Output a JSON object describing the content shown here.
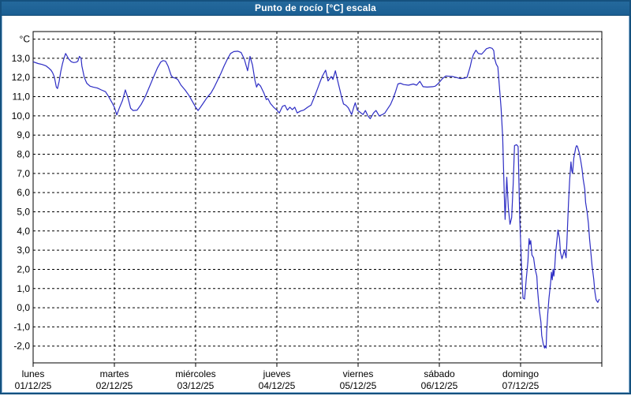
{
  "window": {
    "title": "Punto de rocío [°C] escala",
    "titlebar_color": "#1e6396",
    "frame_color": "#15517f",
    "frame_inner_color": "#8fb6d6"
  },
  "chart_data": {
    "type": "line",
    "title": "Punto de rocío [°C] escala",
    "ylabel": "°C",
    "unit_label": "°C",
    "ylim": [
      -2,
      14
    ],
    "grid": "dashed-black-both-axes",
    "legend": "none",
    "background": "#ffffff",
    "line_color": "#2d2dc4",
    "y_ticks": [
      {
        "value": 13,
        "label": "13,0"
      },
      {
        "value": 12,
        "label": "12,0"
      },
      {
        "value": 11,
        "label": "11,0"
      },
      {
        "value": 10,
        "label": "10,0"
      },
      {
        "value": 9,
        "label": "9,0"
      },
      {
        "value": 8,
        "label": "8,0"
      },
      {
        "value": 7,
        "label": "7,0"
      },
      {
        "value": 6,
        "label": "6,0"
      },
      {
        "value": 5,
        "label": "5,0"
      },
      {
        "value": 4,
        "label": "4,0"
      },
      {
        "value": 3,
        "label": "3,0"
      },
      {
        "value": 2,
        "label": "2,0"
      },
      {
        "value": 1,
        "label": "1,0"
      },
      {
        "value": 0,
        "label": "0,0"
      },
      {
        "value": -1,
        "label": "-1,0"
      },
      {
        "value": -2,
        "label": "-2,0"
      }
    ],
    "x_categories": [
      {
        "name": "lunes",
        "date": "01/12/25"
      },
      {
        "name": "martes",
        "date": "02/12/25"
      },
      {
        "name": "miércoles",
        "date": "03/12/25"
      },
      {
        "name": "jueves",
        "date": "04/12/25"
      },
      {
        "name": "viernes",
        "date": "05/12/25"
      },
      {
        "name": "sábado",
        "date": "06/12/25"
      },
      {
        "name": "domingo",
        "date": "07/12/25"
      }
    ],
    "x_range_days": [
      0,
      7
    ],
    "series": [
      {
        "name": "Punto de rocío",
        "color": "#2d2dc4",
        "points": [
          [
            0,
            12.82
          ],
          [
            0.06,
            12.73
          ],
          [
            0.11,
            12.68
          ],
          [
            0.16,
            12.6
          ],
          [
            0.19,
            12.5
          ],
          [
            0.22,
            12.38
          ],
          [
            0.24,
            12.25
          ],
          [
            0.26,
            12.04
          ],
          [
            0.27,
            11.84
          ],
          [
            0.285,
            11.5
          ],
          [
            0.3,
            11.42
          ],
          [
            0.32,
            11.8
          ],
          [
            0.34,
            12.3
          ],
          [
            0.36,
            12.7
          ],
          [
            0.38,
            13.0
          ],
          [
            0.4,
            13.25
          ],
          [
            0.42,
            13.1
          ],
          [
            0.44,
            12.95
          ],
          [
            0.47,
            12.82
          ],
          [
            0.5,
            12.78
          ],
          [
            0.53,
            12.8
          ],
          [
            0.55,
            12.85
          ],
          [
            0.57,
            13.1
          ],
          [
            0.59,
            13.0
          ],
          [
            0.6,
            12.6
          ],
          [
            0.63,
            12.0
          ],
          [
            0.66,
            11.7
          ],
          [
            0.7,
            11.55
          ],
          [
            0.74,
            11.5
          ],
          [
            0.79,
            11.45
          ],
          [
            0.84,
            11.35
          ],
          [
            0.89,
            11.26
          ],
          [
            0.93,
            11.0
          ],
          [
            0.97,
            10.7
          ],
          [
            1.0,
            10.45
          ],
          [
            1.03,
            10.05
          ],
          [
            1.06,
            10.4
          ],
          [
            1.1,
            10.8
          ],
          [
            1.135,
            11.35
          ],
          [
            1.17,
            10.9
          ],
          [
            1.2,
            10.4
          ],
          [
            1.23,
            10.28
          ],
          [
            1.28,
            10.3
          ],
          [
            1.33,
            10.6
          ],
          [
            1.38,
            11.0
          ],
          [
            1.43,
            11.5
          ],
          [
            1.48,
            12.0
          ],
          [
            1.53,
            12.5
          ],
          [
            1.57,
            12.8
          ],
          [
            1.6,
            12.88
          ],
          [
            1.63,
            12.85
          ],
          [
            1.66,
            12.6
          ],
          [
            1.7,
            12.1
          ],
          [
            1.72,
            12.0
          ],
          [
            1.75,
            11.97
          ],
          [
            1.78,
            11.9
          ],
          [
            1.82,
            11.6
          ],
          [
            1.87,
            11.35
          ],
          [
            1.92,
            11.05
          ],
          [
            1.96,
            10.75
          ],
          [
            2.0,
            10.45
          ],
          [
            2.03,
            10.28
          ],
          [
            2.06,
            10.45
          ],
          [
            2.1,
            10.7
          ],
          [
            2.14,
            10.95
          ],
          [
            2.19,
            11.2
          ],
          [
            2.23,
            11.5
          ],
          [
            2.27,
            11.85
          ],
          [
            2.31,
            12.2
          ],
          [
            2.35,
            12.6
          ],
          [
            2.39,
            12.95
          ],
          [
            2.43,
            13.25
          ],
          [
            2.47,
            13.35
          ],
          [
            2.52,
            13.37
          ],
          [
            2.56,
            13.3
          ],
          [
            2.6,
            12.95
          ],
          [
            2.64,
            12.35
          ],
          [
            2.67,
            13.1
          ],
          [
            2.7,
            12.65
          ],
          [
            2.73,
            11.85
          ],
          [
            2.75,
            11.5
          ],
          [
            2.77,
            11.68
          ],
          [
            2.8,
            11.55
          ],
          [
            2.84,
            11.2
          ],
          [
            2.87,
            10.85
          ],
          [
            2.89,
            10.9
          ],
          [
            2.92,
            10.65
          ],
          [
            2.96,
            10.45
          ],
          [
            3.0,
            10.3
          ],
          [
            3.03,
            10.15
          ],
          [
            3.07,
            10.5
          ],
          [
            3.1,
            10.55
          ],
          [
            3.13,
            10.3
          ],
          [
            3.16,
            10.45
          ],
          [
            3.19,
            10.33
          ],
          [
            3.22,
            10.45
          ],
          [
            3.25,
            10.15
          ],
          [
            3.29,
            10.25
          ],
          [
            3.33,
            10.3
          ],
          [
            3.38,
            10.45
          ],
          [
            3.42,
            10.56
          ],
          [
            3.46,
            10.97
          ],
          [
            3.49,
            11.3
          ],
          [
            3.53,
            11.75
          ],
          [
            3.56,
            12.07
          ],
          [
            3.6,
            12.38
          ],
          [
            3.63,
            11.82
          ],
          [
            3.67,
            12.05
          ],
          [
            3.69,
            11.9
          ],
          [
            3.72,
            12.35
          ],
          [
            3.75,
            11.8
          ],
          [
            3.79,
            11.1
          ],
          [
            3.82,
            10.62
          ],
          [
            3.85,
            10.55
          ],
          [
            3.88,
            10.42
          ],
          [
            3.92,
            10.07
          ],
          [
            3.95,
            10.5
          ],
          [
            3.965,
            10.68
          ],
          [
            3.99,
            10.3
          ],
          [
            4.02,
            10.2
          ],
          [
            4.06,
            10.07
          ],
          [
            4.09,
            10.28
          ],
          [
            4.12,
            10.0
          ],
          [
            4.15,
            9.85
          ],
          [
            4.19,
            10.15
          ],
          [
            4.22,
            10.28
          ],
          [
            4.26,
            10.0
          ],
          [
            4.3,
            10.07
          ],
          [
            4.33,
            10.15
          ],
          [
            4.36,
            10.35
          ],
          [
            4.4,
            10.6
          ],
          [
            4.43,
            10.9
          ],
          [
            4.46,
            11.25
          ],
          [
            4.49,
            11.66
          ],
          [
            4.52,
            11.7
          ],
          [
            4.56,
            11.63
          ],
          [
            4.62,
            11.6
          ],
          [
            4.68,
            11.66
          ],
          [
            4.72,
            11.6
          ],
          [
            4.76,
            11.8
          ],
          [
            4.8,
            11.52
          ],
          [
            4.85,
            11.5
          ],
          [
            4.92,
            11.52
          ],
          [
            4.95,
            11.55
          ],
          [
            4.98,
            11.66
          ],
          [
            5.01,
            11.8
          ],
          [
            5.04,
            11.95
          ],
          [
            5.08,
            12.08
          ],
          [
            5.16,
            12.05
          ],
          [
            5.21,
            12.0
          ],
          [
            5.26,
            11.94
          ],
          [
            5.31,
            11.97
          ],
          [
            5.34,
            12.0
          ],
          [
            5.36,
            12.28
          ],
          [
            5.38,
            12.56
          ],
          [
            5.4,
            12.95
          ],
          [
            5.42,
            13.2
          ],
          [
            5.45,
            13.42
          ],
          [
            5.48,
            13.25
          ],
          [
            5.52,
            13.22
          ],
          [
            5.55,
            13.35
          ],
          [
            5.58,
            13.5
          ],
          [
            5.62,
            13.56
          ],
          [
            5.65,
            13.52
          ],
          [
            5.67,
            13.4
          ],
          [
            5.68,
            13.0
          ],
          [
            5.7,
            12.7
          ],
          [
            5.72,
            12.55
          ],
          [
            5.74,
            11.5
          ],
          [
            5.76,
            10.4
          ],
          [
            5.78,
            8.9
          ],
          [
            5.8,
            5.8
          ],
          [
            5.81,
            4.6
          ],
          [
            5.83,
            6.8
          ],
          [
            5.85,
            5.2
          ],
          [
            5.87,
            4.35
          ],
          [
            5.89,
            4.7
          ],
          [
            5.91,
            6.5
          ],
          [
            5.925,
            8.45
          ],
          [
            5.95,
            8.5
          ],
          [
            5.97,
            8.4
          ],
          [
            5.99,
            4.6
          ],
          [
            6.0,
            3.5
          ],
          [
            6.02,
            1.2
          ],
          [
            6.03,
            0.5
          ],
          [
            6.05,
            0.45
          ],
          [
            6.07,
            1.5
          ],
          [
            6.09,
            2.4
          ],
          [
            6.105,
            3.6
          ],
          [
            6.115,
            3.3
          ],
          [
            6.125,
            3.5
          ],
          [
            6.14,
            2.75
          ],
          [
            6.16,
            2.6
          ],
          [
            6.18,
            2.0
          ],
          [
            6.2,
            1.65
          ],
          [
            6.21,
            0.9
          ],
          [
            6.23,
            -0.1
          ],
          [
            6.25,
            -0.75
          ],
          [
            6.26,
            -1.45
          ],
          [
            6.28,
            -1.9
          ],
          [
            6.295,
            -2.1
          ],
          [
            6.305,
            -2.0
          ],
          [
            6.315,
            -2.1
          ],
          [
            6.32,
            -1.3
          ],
          [
            6.335,
            -0.3
          ],
          [
            6.35,
            0.5
          ],
          [
            6.37,
            1.3
          ],
          [
            6.38,
            1.85
          ],
          [
            6.39,
            1.45
          ],
          [
            6.4,
            2.0
          ],
          [
            6.41,
            1.65
          ],
          [
            6.42,
            2.1
          ],
          [
            6.43,
            2.8
          ],
          [
            6.46,
            4.05
          ],
          [
            6.48,
            3.6
          ],
          [
            6.49,
            2.9
          ],
          [
            6.51,
            2.55
          ],
          [
            6.54,
            3.0
          ],
          [
            6.56,
            2.6
          ],
          [
            6.57,
            3.4
          ],
          [
            6.59,
            5.5
          ],
          [
            6.605,
            6.7
          ],
          [
            6.62,
            7.6
          ],
          [
            6.63,
            7.15
          ],
          [
            6.64,
            7.0
          ],
          [
            6.655,
            7.8
          ],
          [
            6.68,
            8.35
          ],
          [
            6.69,
            8.45
          ],
          [
            6.7,
            8.4
          ],
          [
            6.72,
            8.1
          ],
          [
            6.74,
            7.68
          ],
          [
            6.755,
            7.27
          ],
          [
            6.77,
            6.72
          ],
          [
            6.79,
            6.18
          ],
          [
            6.8,
            5.5
          ],
          [
            6.82,
            4.94
          ],
          [
            6.835,
            4.4
          ],
          [
            6.85,
            3.57
          ],
          [
            6.865,
            2.88
          ],
          [
            6.88,
            2.2
          ],
          [
            6.9,
            1.51
          ],
          [
            6.915,
            0.83
          ],
          [
            6.93,
            0.41
          ],
          [
            6.95,
            0.28
          ],
          [
            6.97,
            0.45
          ]
        ]
      }
    ]
  }
}
